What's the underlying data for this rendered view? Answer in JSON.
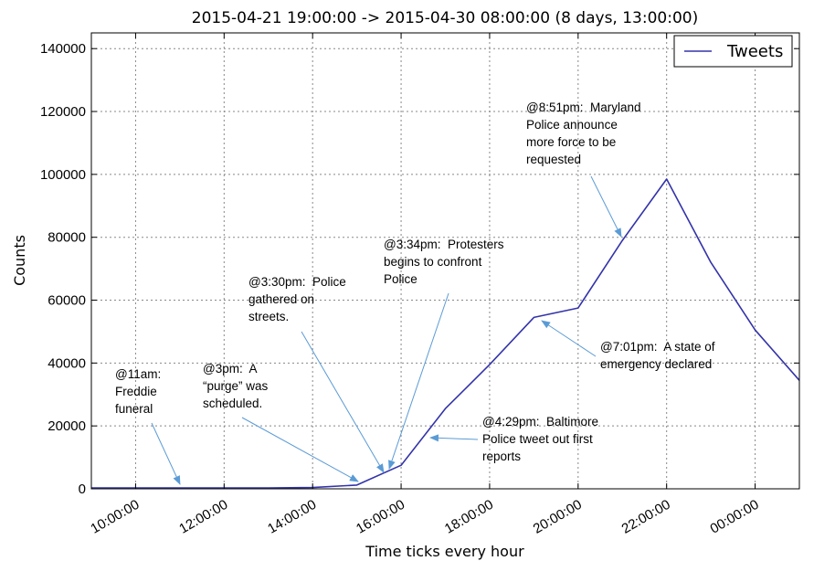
{
  "chart_data": {
    "type": "line",
    "title": "2015-04-21 19:00:00 -> 2015-04-30 08:00:00 (8 days, 13:00:00)",
    "xlabel": "Time ticks every hour",
    "ylabel": "Counts",
    "x_ticks": [
      "10:00:00",
      "12:00:00",
      "14:00:00",
      "16:00:00",
      "18:00:00",
      "20:00:00",
      "22:00:00",
      "00:00:00"
    ],
    "y_ticks": [
      0,
      20000,
      40000,
      60000,
      80000,
      100000,
      120000,
      140000
    ],
    "ylim": [
      0,
      145000
    ],
    "x": [
      "09:00",
      "10:00",
      "11:00",
      "12:00",
      "13:00",
      "14:00",
      "15:00",
      "16:00",
      "17:00",
      "18:00",
      "19:00",
      "20:00",
      "21:00",
      "22:00",
      "23:00",
      "00:00",
      "01:00"
    ],
    "series": [
      {
        "name": "Tweets",
        "color": "#3333aa",
        "values": [
          300,
          300,
          300,
          300,
          300,
          400,
          1200,
          7500,
          25500,
          39500,
          54500,
          57500,
          79000,
          98500,
          72000,
          50500,
          34500
        ]
      }
    ],
    "legend": {
      "placement": "top-right",
      "entries": [
        "Tweets"
      ]
    },
    "grid": true,
    "annotations": [
      {
        "id": "a1",
        "lines": [
          "@11am:",
          "Freddie",
          "funeral"
        ]
      },
      {
        "id": "a2",
        "lines": [
          "@3pm:  A",
          "“purge” was",
          "scheduled."
        ]
      },
      {
        "id": "a3",
        "lines": [
          "@3:30pm:  Police",
          "gathered on",
          "streets."
        ]
      },
      {
        "id": "a4",
        "lines": [
          "@3:34pm:  Protesters",
          "begins to confront",
          "Police"
        ]
      },
      {
        "id": "a5",
        "lines": [
          "@4:29pm:  Baltimore",
          "Police tweet out first",
          "reports"
        ]
      },
      {
        "id": "a6",
        "lines": [
          "@7:01pm:  A state of",
          "emergency declared"
        ]
      },
      {
        "id": "a7",
        "lines": [
          "@8:51pm:  Maryland",
          "Police announce",
          "more force to be",
          "requested"
        ]
      }
    ]
  }
}
